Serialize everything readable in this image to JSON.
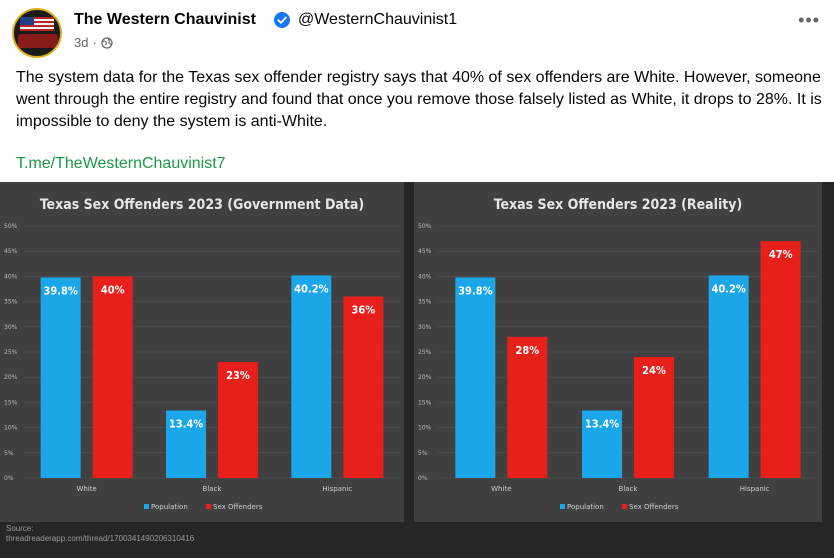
{
  "author": {
    "name": "The Western Chauvinist",
    "handle": "@WesternChauvinist1",
    "time": "3d",
    "separator": "·",
    "verified_icon": "verified-badge-icon",
    "audience_icon": "globe-icon",
    "more_label": "•••"
  },
  "post": {
    "text": "The system data for the Texas sex offender registry says that 40% of sex offenders are White. However, someone went through the entire registry and found that once you remove those falsely listed as White, it drops to 28%.  It is impossible to deny the system is anti-White.",
    "link": "T.me/TheWesternChauvinist7"
  },
  "colors": {
    "population": "#1aa6e8",
    "offenders": "#e8201c",
    "panel": "#404040",
    "link": "#1a9a4a"
  },
  "chart_data": [
    {
      "type": "bar",
      "title": "Texas Sex Offenders 2023 (Government Data)",
      "categories": [
        "White",
        "Black",
        "Hispanic"
      ],
      "series": [
        {
          "name": "Population",
          "values": [
            39.8,
            13.4,
            40.2
          ],
          "labels": [
            "39.8%",
            "13.4%",
            "40.2%"
          ]
        },
        {
          "name": "Sex Offenders",
          "values": [
            40,
            23,
            36
          ],
          "labels": [
            "40%",
            "23%",
            "36%"
          ]
        }
      ],
      "y_ticks": [
        "0%",
        "5%",
        "10%",
        "15%",
        "20%",
        "25%",
        "30%",
        "35%",
        "40%",
        "45%",
        "50%"
      ],
      "ylim": [
        0,
        50
      ],
      "legend": "bottom",
      "grid": true
    },
    {
      "type": "bar",
      "title": "Texas Sex Offenders 2023 (Reality)",
      "categories": [
        "White",
        "Black",
        "Hispanic"
      ],
      "series": [
        {
          "name": "Population",
          "values": [
            39.8,
            13.4,
            40.2
          ],
          "labels": [
            "39.8%",
            "13.4%",
            "40.2%"
          ]
        },
        {
          "name": "Sex Offenders",
          "values": [
            28,
            24,
            47
          ],
          "labels": [
            "28%",
            "24%",
            "47%"
          ]
        }
      ],
      "y_ticks": [
        "0%",
        "5%",
        "10%",
        "15%",
        "20%",
        "25%",
        "30%",
        "35%",
        "40%",
        "45%",
        "50%"
      ],
      "ylim": [
        0,
        50
      ],
      "legend": "bottom",
      "grid": true
    }
  ],
  "source": {
    "label": "Source:",
    "url": "threadreaderapp.com/thread/1700341490206310416"
  }
}
